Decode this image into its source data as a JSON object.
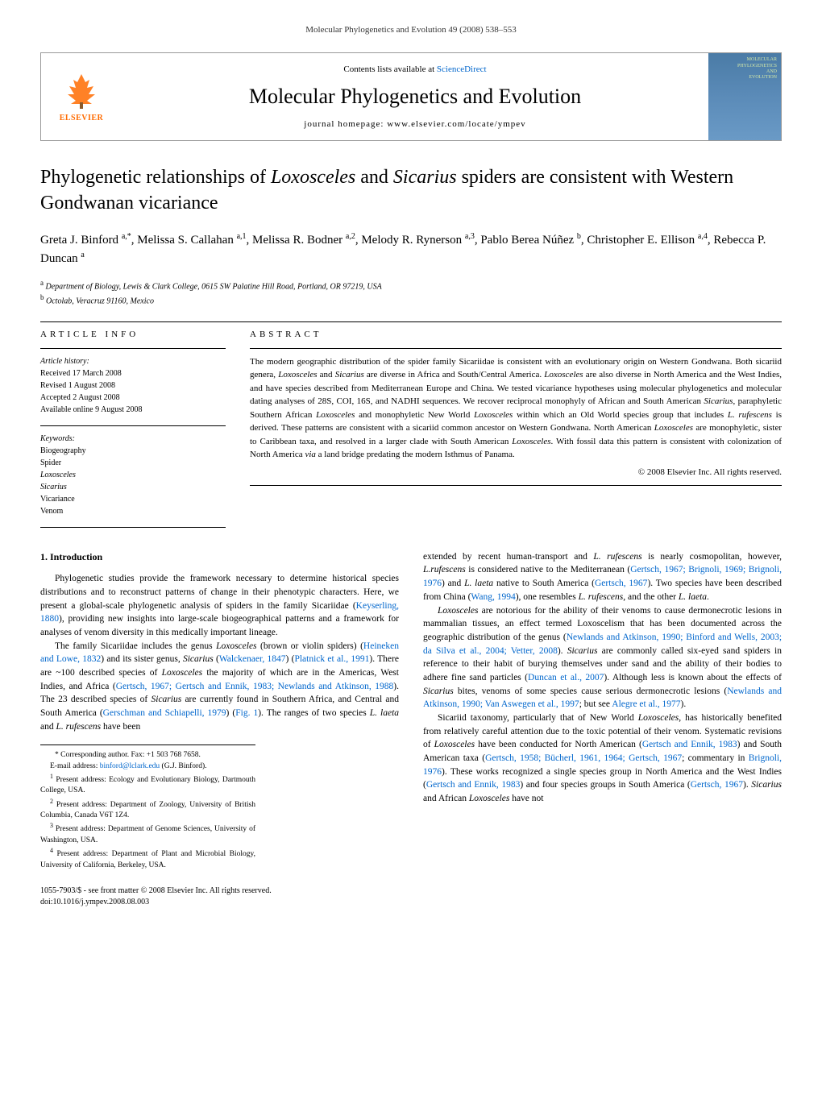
{
  "header": {
    "citation": "Molecular Phylogenetics and Evolution 49 (2008) 538–553"
  },
  "banner": {
    "contents_prefix": "Contents lists available at ",
    "contents_link": "ScienceDirect",
    "journal_title": "Molecular Phylogenetics and Evolution",
    "homepage_label": "journal homepage: www.elsevier.com/locate/ympev",
    "publisher_name": "ELSEVIER",
    "cover_text_1": "MOLECULAR",
    "cover_text_2": "PHYLOGENETICS",
    "cover_text_3": "AND",
    "cover_text_4": "EVOLUTION",
    "logo_color": "#ff6b00",
    "cover_bg": "#5b8bb8"
  },
  "article": {
    "title_part1": "Phylogenetic relationships of ",
    "title_italic1": "Loxosceles",
    "title_part2": " and ",
    "title_italic2": "Sicarius",
    "title_part3": " spiders are consistent with Western Gondwanan vicariance",
    "authors_html": "Greta J. Binford <sup>a,*</sup>, Melissa S. Callahan <sup>a,1</sup>, Melissa R. Bodner <sup>a,2</sup>, Melody R. Rynerson <sup>a,3</sup>, Pablo Berea Núñez <sup>b</sup>, Christopher E. Ellison <sup>a,4</sup>, Rebecca P. Duncan <sup>a</sup>",
    "affiliation_a": "Department of Biology, Lewis & Clark College, 0615 SW Palatine Hill Road, Portland, OR 97219, USA",
    "affiliation_b": "Octolab, Veracruz 91160, Mexico"
  },
  "article_info": {
    "heading": "article info",
    "history_label": "Article history:",
    "received": "Received 17 March 2008",
    "revised": "Revised 1 August 2008",
    "accepted": "Accepted 2 August 2008",
    "online": "Available online 9 August 2008",
    "keywords_label": "Keywords:",
    "keywords": [
      "Biogeography",
      "Spider",
      "Loxosceles",
      "Sicarius",
      "Vicariance",
      "Venom"
    ]
  },
  "abstract": {
    "heading": "abstract",
    "text": "The modern geographic distribution of the spider family Sicariidae is consistent with an evolutionary origin on Western Gondwana. Both sicariid genera, <span class=\"italic\">Loxosceles</span> and <span class=\"italic\">Sicarius</span> are diverse in Africa and South/Central America. <span class=\"italic\">Loxosceles</span> are also diverse in North America and the West Indies, and have species described from Mediterranean Europe and China. We tested vicariance hypotheses using molecular phylogenetics and molecular dating analyses of 28S, COI, 16S, and NADHI sequences. We recover reciprocal monophyly of African and South American <span class=\"italic\">Sicarius</span>, paraphyletic Southern African <span class=\"italic\">Loxosceles</span> and monophyletic New World <span class=\"italic\">Loxosceles</span> within which an Old World species group that includes <span class=\"italic\">L. rufescens</span> is derived. These patterns are consistent with a sicariid common ancestor on Western Gondwana. North American <span class=\"italic\">Loxosceles</span> are monophyletic, sister to Caribbean taxa, and resolved in a larger clade with South American <span class=\"italic\">Loxosceles</span>. With fossil data this pattern is consistent with colonization of North America <span class=\"italic\">via</span> a land bridge predating the modern Isthmus of Panama.",
    "copyright": "© 2008 Elsevier Inc. All rights reserved."
  },
  "body": {
    "intro_heading": "1. Introduction",
    "col1_p1": "Phylogenetic studies provide the framework necessary to determine historical species distributions and to reconstruct patterns of change in their phenotypic characters. Here, we present a global-scale phylogenetic analysis of spiders in the family Sicariidae (<a>Keyserling, 1880</a>), providing new insights into large-scale biogeographical patterns and a framework for analyses of venom diversity in this medically important lineage.",
    "col1_p2": "The family Sicariidae includes the genus <span class=\"italic\">Loxosceles</span> (brown or violin spiders) (<a>Heineken and Lowe, 1832</a>) and its sister genus, <span class=\"italic\">Sicarius</span> (<a>Walckenaer, 1847</a>) (<a>Platnick et al., 1991</a>). There are ~100 described species of <span class=\"italic\">Loxosceles</span> the majority of which are in the Americas, West Indies, and Africa (<a>Gertsch, 1967; Gertsch and Ennik, 1983; Newlands and Atkinson, 1988</a>). The 23 described species of <span class=\"italic\">Sicarius</span> are currently found in Southern Africa, and Central and South America (<a>Gerschman and Schiapelli, 1979</a>) (<a>Fig. 1</a>). The ranges of two species <span class=\"italic\">L. laeta</span> and <span class=\"italic\">L. rufescens</span> have been",
    "col2_p1": "extended by recent human-transport and <span class=\"italic\">L. rufescens</span> is nearly cosmopolitan, however, <span class=\"italic\">L.rufescens</span> is considered native to the Mediterranean (<a>Gertsch, 1967; Brignoli, 1969; Brignoli, 1976</a>) and <span class=\"italic\">L. laeta</span> native to South America (<a>Gertsch, 1967</a>). Two species have been described from China (<a>Wang, 1994</a>), one resembles <span class=\"italic\">L. rufescens</span>, and the other <span class=\"italic\">L. laeta</span>.",
    "col2_p2": "<span class=\"italic\">Loxosceles</span> are notorious for the ability of their venoms to cause dermonecrotic lesions in mammalian tissues, an effect termed Loxoscelism that has been documented across the geographic distribution of the genus (<a>Newlands and Atkinson, 1990; Binford and Wells, 2003; da Silva et al., 2004; Vetter, 2008</a>). <span class=\"italic\">Sicarius</span> are commonly called six-eyed sand spiders in reference to their habit of burying themselves under sand and the ability of their bodies to adhere fine sand particles (<a>Duncan et al., 2007</a>). Although less is known about the effects of <span class=\"italic\">Sicarius</span> bites, venoms of some species cause serious dermonecrotic lesions (<a>Newlands and Atkinson, 1990; Van Aswegen et al., 1997</a>; but see <a>Alegre et al., 1977</a>).",
    "col2_p3": "Sicariid taxonomy, particularly that of New World <span class=\"italic\">Loxosceles</span>, has historically benefited from relatively careful attention due to the toxic potential of their venom. Systematic revisions of <span class=\"italic\">Loxosceles</span> have been conducted for North American (<a>Gertsch and Ennik, 1983</a>) and South American taxa (<a>Gertsch, 1958; Bücherl, 1961, 1964; Gertsch, 1967</a>; commentary in <a>Brignoli, 1976</a>). These works recognized a single species group in North America and the West Indies (<a>Gertsch and Ennik, 1983</a>) and four species groups in South America (<a>Gertsch, 1967</a>). <span class=\"italic\">Sicarius</span> and African <span class=\"italic\">Loxosceles</span> have not"
  },
  "footnotes": {
    "corr": "* Corresponding author. Fax: +1 503 768 7658.",
    "email_label": "E-mail address: ",
    "email": "binford@lclark.edu",
    "email_suffix": " (G.J. Binford).",
    "fn1": "Present address: Ecology and Evolutionary Biology, Dartmouth College, USA.",
    "fn2": "Present address: Department of Zoology, University of British Columbia, Canada V6T 1Z4.",
    "fn3": "Present address: Department of Genome Sciences, University of Washington, USA.",
    "fn4": "Present address: Department of Plant and Microbial Biology, University of California, Berkeley, USA."
  },
  "footer": {
    "issn_line": "1055-7903/$ - see front matter © 2008 Elsevier Inc. All rights reserved.",
    "doi_line": "doi:10.1016/j.ympev.2008.08.003"
  }
}
